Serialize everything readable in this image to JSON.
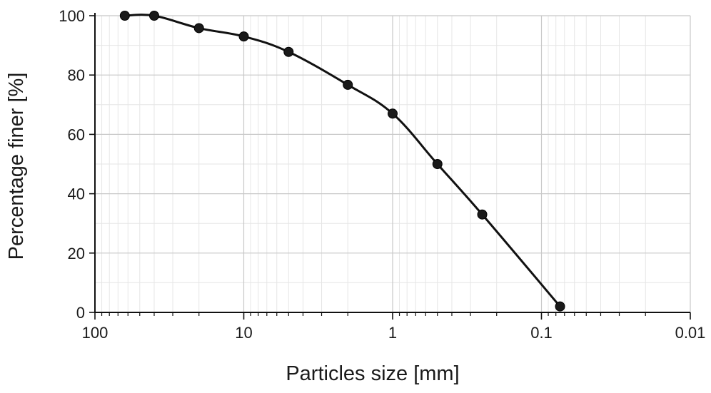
{
  "chart_data": {
    "type": "line",
    "xlabel": "Particles size [mm]",
    "ylabel": "Percentage finer [%]",
    "x_scale": "log",
    "x_reversed": true,
    "xlim": [
      100,
      0.01
    ],
    "ylim": [
      0,
      100
    ],
    "x_ticks": [
      100,
      10,
      1,
      0.1,
      0.01
    ],
    "x_tick_labels": [
      "100",
      "10",
      "1",
      "0.1",
      "0.01"
    ],
    "y_ticks": [
      0,
      20,
      40,
      60,
      80,
      100
    ],
    "y_tick_labels": [
      "0",
      "20",
      "40",
      "60",
      "80",
      "100"
    ],
    "grid": true,
    "series": [
      {
        "x": [
          63,
          40,
          20,
          10,
          5,
          2,
          1,
          0.5,
          0.25,
          0.075
        ],
        "y": [
          100,
          100,
          95.8,
          93,
          87.8,
          76.7,
          67,
          50,
          33,
          2
        ],
        "color": "#111111",
        "marker": "circle"
      }
    ]
  }
}
